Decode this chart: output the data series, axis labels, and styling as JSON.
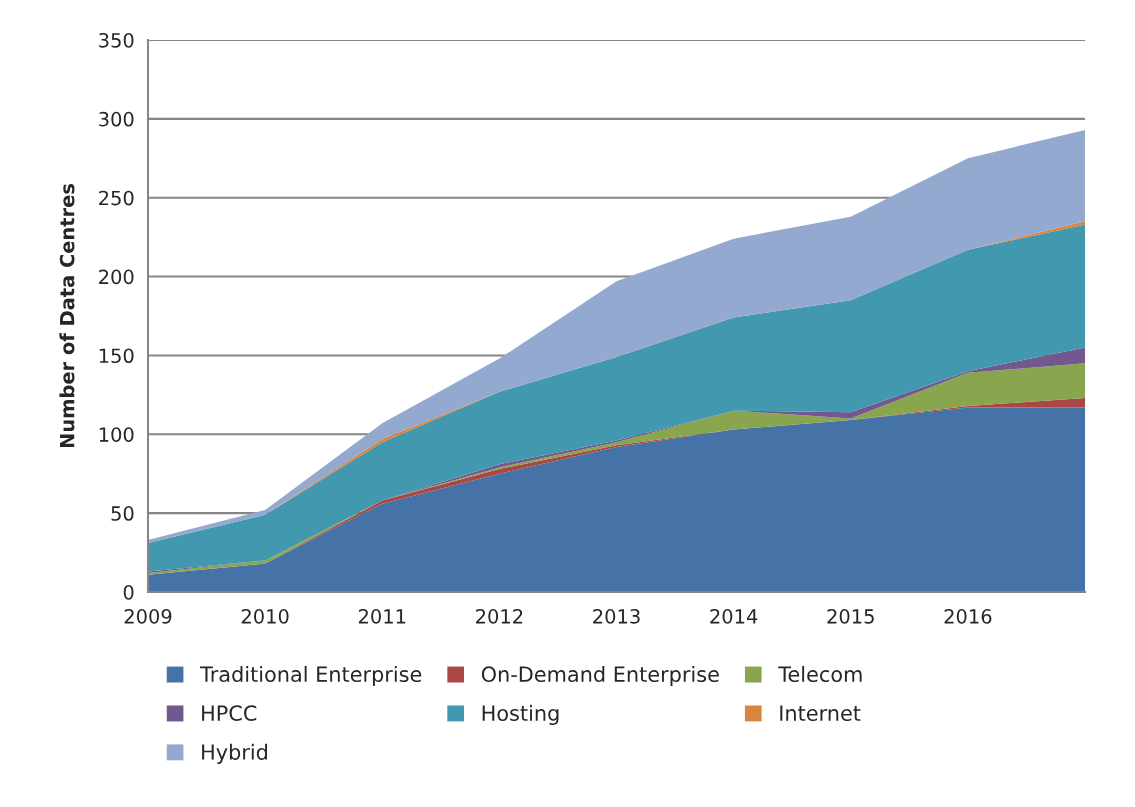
{
  "chart_data": {
    "type": "area",
    "stacked": true,
    "ylabel": "Number of Data Centres",
    "categories": [
      "2009",
      "2010",
      "2011",
      "2012",
      "2013",
      "2014",
      "2015",
      "2016",
      null
    ],
    "ylim": [
      0,
      350
    ],
    "yticks": [
      0,
      50,
      100,
      150,
      200,
      250,
      300,
      350
    ],
    "grid": "y",
    "legend": "bottom",
    "series": [
      {
        "name": "Traditional Enterprise",
        "color": "#4572a7",
        "values": [
          11,
          18,
          56,
          75,
          92,
          103,
          109,
          117,
          117
        ]
      },
      {
        "name": "On-Demand Enterprise",
        "color": "#aa4643",
        "values": [
          0,
          0,
          2,
          3,
          1,
          0,
          0,
          1,
          6
        ]
      },
      {
        "name": "Telecom",
        "color": "#89a54e",
        "values": [
          1,
          2,
          0,
          1,
          2,
          12,
          1,
          21,
          22
        ]
      },
      {
        "name": "HPCC",
        "color": "#71588f",
        "values": [
          1,
          0,
          0,
          2,
          1,
          0,
          4,
          1,
          10
        ]
      },
      {
        "name": "Hosting",
        "color": "#4198af",
        "values": [
          18,
          29,
          37,
          46,
          53,
          59,
          71,
          77,
          78
        ]
      },
      {
        "name": "Internet",
        "color": "#db843d",
        "values": [
          0,
          0,
          2,
          0,
          0,
          0,
          0,
          0,
          2
        ]
      },
      {
        "name": "Hybrid",
        "color": "#93a9cf",
        "values": [
          2,
          3,
          10,
          21,
          48,
          50,
          53,
          58,
          58
        ]
      }
    ]
  }
}
